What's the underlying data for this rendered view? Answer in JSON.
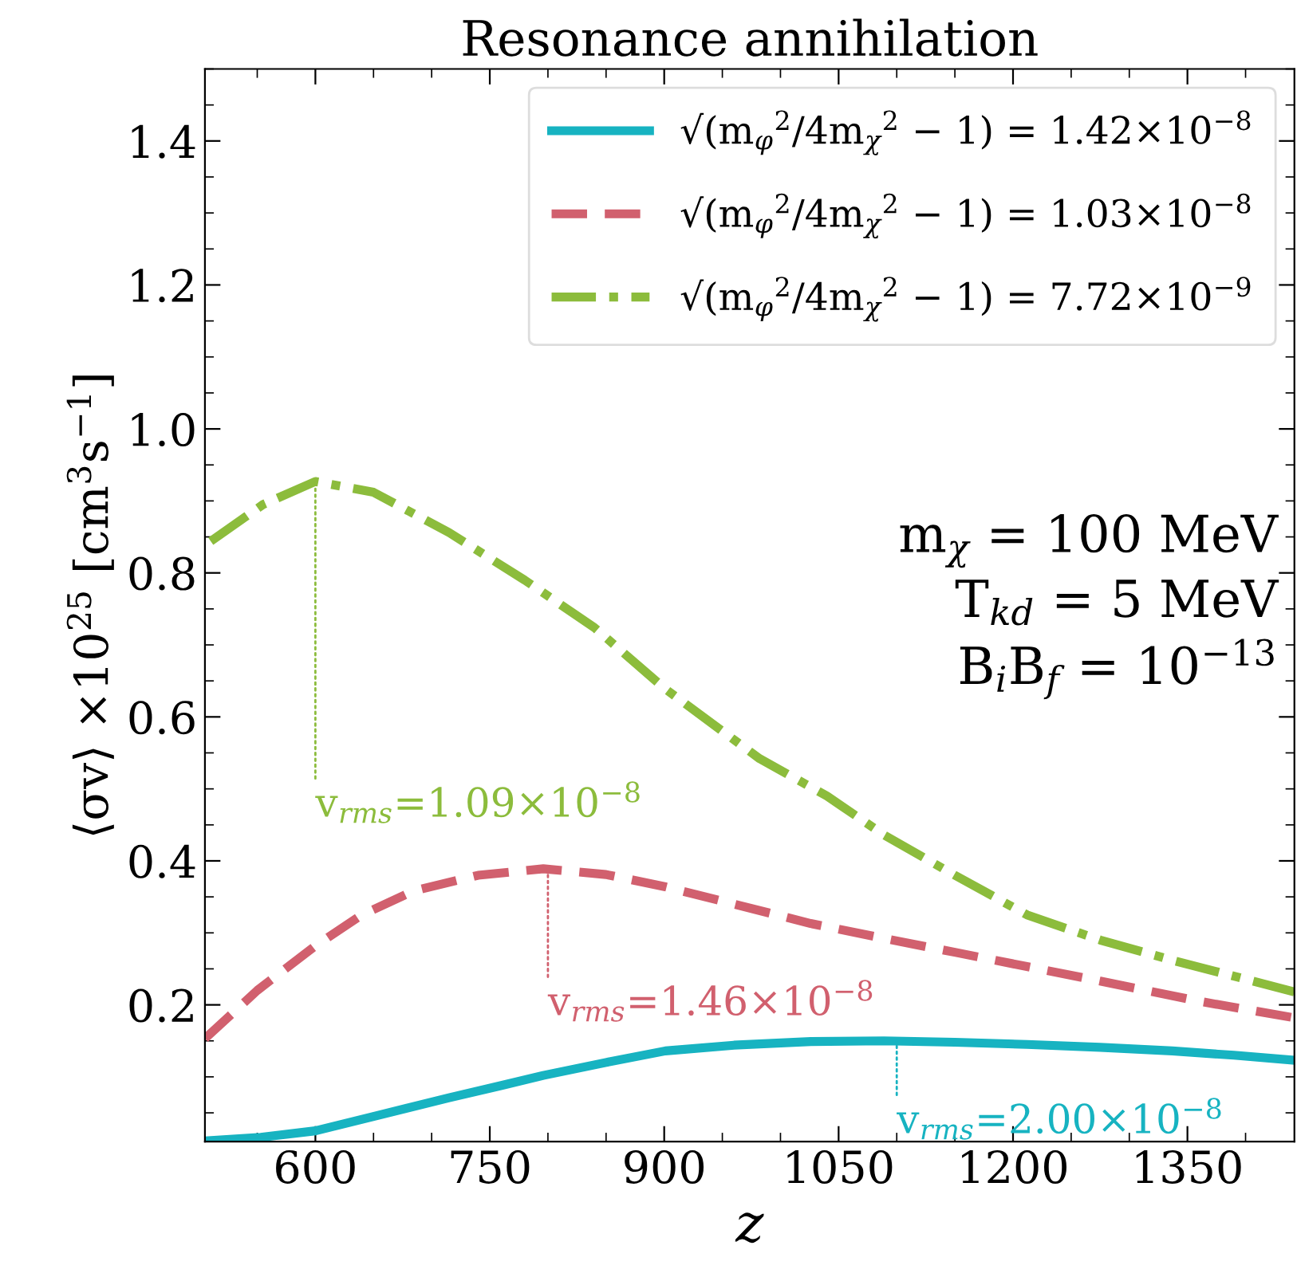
{
  "chart_data": {
    "type": "line",
    "title": "Resonance annihilation",
    "xlabel": "z",
    "ylabel": "⟨σv⟩ ×10$^{25}$ [cm$^{3}$s$^{−1}$]",
    "xlim": [
      505,
      1442
    ],
    "ylim": [
      0.01,
      1.5
    ],
    "xticks": [
      600,
      750,
      900,
      1050,
      1200,
      1350
    ],
    "yticks": [
      0.2,
      0.4,
      0.6,
      0.8,
      {
        "value": 1.0,
        "label": "1.0"
      },
      1.2,
      1.4
    ],
    "grid": false,
    "legend": "top right",
    "marker": "none",
    "series": [
      {
        "name": "√(m$_{φ}$$^{2}$/4m$_{χ}$$^{2}$ − 1) = 1.42×10$^{−8}$",
        "color": "#17b3c1",
        "line_style": "solid",
        "x": [
          505,
          553,
          600,
          650,
          715,
          760,
          796,
          850,
          901,
          960,
          1026,
          1089,
          1150,
          1212,
          1275,
          1337,
          1390,
          1442
        ],
        "values": [
          0.011,
          0.016,
          0.025,
          0.045,
          0.071,
          0.088,
          0.102,
          0.12,
          0.136,
          0.144,
          0.149,
          0.15,
          0.148,
          0.145,
          0.141,
          0.136,
          0.13,
          0.123
        ]
      },
      {
        "name": "√(m$_{φ}$$^{2}$/4m$_{χ}$$^{2}$ − 1) = 1.03×10$^{−8}$",
        "color": "#d1606e",
        "line_style": "dashed",
        "x": [
          505,
          550,
          600,
          640,
          684,
          740,
          796,
          850,
          901,
          960,
          1026,
          1090,
          1150,
          1275,
          1360,
          1442
        ],
        "values": [
          0.153,
          0.22,
          0.282,
          0.325,
          0.358,
          0.38,
          0.389,
          0.381,
          0.364,
          0.34,
          0.313,
          0.292,
          0.273,
          0.233,
          0.205,
          0.182
        ]
      },
      {
        "name": "√(m$_{φ}$$^{2}$/4m$_{χ}$$^{2}$ − 1) = 7.72×10$^{−9}$",
        "color": "#8cbc3c",
        "line_style": "dashdot",
        "x": [
          510,
          555,
          600,
          650,
          715,
          780,
          840,
          900,
          982,
          1040,
          1089,
          1150,
          1212,
          1275,
          1337,
          1442
        ],
        "values": [
          0.844,
          0.895,
          0.927,
          0.912,
          0.856,
          0.79,
          0.724,
          0.64,
          0.542,
          0.49,
          0.436,
          0.38,
          0.325,
          0.29,
          0.262,
          0.218
        ]
      }
    ],
    "annotations": [
      {
        "text": "v$_{rms}$=2.00×10$^{−8}$",
        "x": 1100,
        "y": 0.15
      },
      {
        "text": "v$_{rms}$=1.46×10$^{−8}$",
        "x": 800,
        "y": 0.389
      },
      {
        "text": "v$_{rms}$=1.09×10$^{−8}$",
        "x": 600,
        "y": 0.927
      },
      "m$_{χ}$ = 100 MeV\nT$_{kd}$ = 5 MeV\nB$_{i}$B$_{f}$ = 10$^{−13}$"
    ]
  }
}
